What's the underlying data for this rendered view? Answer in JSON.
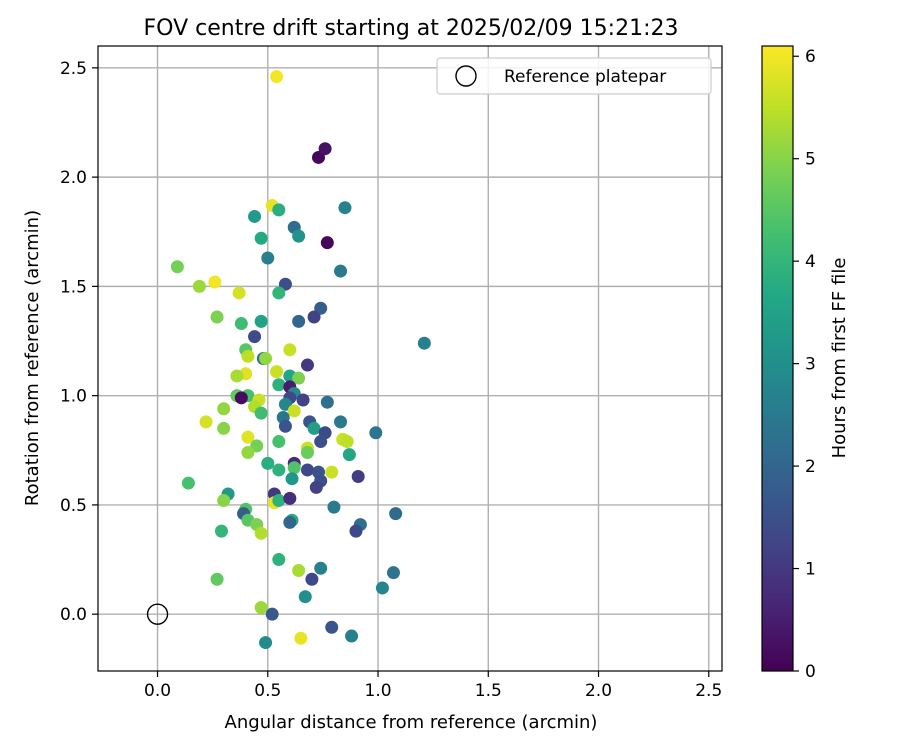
{
  "chart_data": {
    "type": "scatter",
    "title": "FOV centre drift starting at 2025/02/09 15:21:23",
    "xlabel": "Angular distance from reference (arcmin)",
    "ylabel": "Rotation from reference (arcmin)",
    "xlim": [
      -0.27,
      2.56
    ],
    "ylim": [
      -0.26,
      2.6
    ],
    "xticks": [
      "0.0",
      "0.5",
      "1.0",
      "1.5",
      "2.0",
      "2.5"
    ],
    "yticks": [
      "0.0",
      "0.5",
      "1.0",
      "1.5",
      "2.0",
      "2.5"
    ],
    "grid": true,
    "legend": {
      "position": "top-right",
      "label": "Reference platepar"
    },
    "colorbar": {
      "label": "Hours from first FF file",
      "range": [
        0,
        6.1
      ],
      "ticks": [
        "0",
        "1",
        "2",
        "3",
        "4",
        "5",
        "6"
      ],
      "colormap": "viridis"
    },
    "reference_point": {
      "x": 0.0,
      "y": 0.0
    },
    "points": [
      {
        "x": 0.54,
        "y": 2.46,
        "h": 6.0
      },
      {
        "x": 0.73,
        "y": 2.09,
        "h": 0.1
      },
      {
        "x": 0.76,
        "y": 2.13,
        "h": 0.3
      },
      {
        "x": 0.52,
        "y": 1.87,
        "h": 5.9
      },
      {
        "x": 0.55,
        "y": 1.85,
        "h": 3.8
      },
      {
        "x": 0.44,
        "y": 1.82,
        "h": 3.3
      },
      {
        "x": 0.85,
        "y": 1.86,
        "h": 2.7
      },
      {
        "x": 0.62,
        "y": 1.77,
        "h": 2.2
      },
      {
        "x": 0.64,
        "y": 1.73,
        "h": 3.1
      },
      {
        "x": 0.47,
        "y": 1.72,
        "h": 3.7
      },
      {
        "x": 0.77,
        "y": 1.7,
        "h": 0.1
      },
      {
        "x": 0.5,
        "y": 1.63,
        "h": 2.6
      },
      {
        "x": 0.09,
        "y": 1.59,
        "h": 4.8
      },
      {
        "x": 0.83,
        "y": 1.57,
        "h": 2.5
      },
      {
        "x": 0.26,
        "y": 1.52,
        "h": 6.0
      },
      {
        "x": 0.19,
        "y": 1.5,
        "h": 5.2
      },
      {
        "x": 0.58,
        "y": 1.51,
        "h": 1.5
      },
      {
        "x": 0.55,
        "y": 1.47,
        "h": 4.0
      },
      {
        "x": 0.37,
        "y": 1.47,
        "h": 5.7
      },
      {
        "x": 0.74,
        "y": 1.4,
        "h": 1.8
      },
      {
        "x": 0.27,
        "y": 1.36,
        "h": 4.9
      },
      {
        "x": 0.71,
        "y": 1.36,
        "h": 1.2
      },
      {
        "x": 0.64,
        "y": 1.34,
        "h": 2.0
      },
      {
        "x": 0.47,
        "y": 1.34,
        "h": 3.5
      },
      {
        "x": 0.38,
        "y": 1.33,
        "h": 4.2
      },
      {
        "x": 0.44,
        "y": 1.27,
        "h": 1.4
      },
      {
        "x": 1.21,
        "y": 1.24,
        "h": 2.6
      },
      {
        "x": 0.4,
        "y": 1.21,
        "h": 4.5
      },
      {
        "x": 0.6,
        "y": 1.21,
        "h": 5.6
      },
      {
        "x": 0.41,
        "y": 1.18,
        "h": 5.5
      },
      {
        "x": 0.48,
        "y": 1.17,
        "h": 2.3
      },
      {
        "x": 0.49,
        "y": 1.17,
        "h": 5.1
      },
      {
        "x": 0.68,
        "y": 1.14,
        "h": 1.0
      },
      {
        "x": 0.54,
        "y": 1.11,
        "h": 5.6
      },
      {
        "x": 0.4,
        "y": 1.1,
        "h": 5.8
      },
      {
        "x": 0.36,
        "y": 1.09,
        "h": 5.3
      },
      {
        "x": 0.6,
        "y": 1.09,
        "h": 3.6
      },
      {
        "x": 0.64,
        "y": 1.08,
        "h": 4.9
      },
      {
        "x": 0.55,
        "y": 1.05,
        "h": 3.9
      },
      {
        "x": 0.6,
        "y": 1.04,
        "h": 0.5
      },
      {
        "x": 0.62,
        "y": 1.01,
        "h": 2.9
      },
      {
        "x": 0.36,
        "y": 1.0,
        "h": 4.6
      },
      {
        "x": 0.41,
        "y": 1.0,
        "h": 4.3
      },
      {
        "x": 0.38,
        "y": 0.99,
        "h": 0.2
      },
      {
        "x": 0.46,
        "y": 0.98,
        "h": 5.6
      },
      {
        "x": 0.6,
        "y": 0.99,
        "h": 1.3
      },
      {
        "x": 0.66,
        "y": 0.98,
        "h": 1.2
      },
      {
        "x": 0.44,
        "y": 0.95,
        "h": 5.4
      },
      {
        "x": 0.58,
        "y": 0.96,
        "h": 2.8
      },
      {
        "x": 0.77,
        "y": 0.97,
        "h": 2.2
      },
      {
        "x": 0.3,
        "y": 0.94,
        "h": 5.1
      },
      {
        "x": 0.62,
        "y": 0.93,
        "h": 5.6
      },
      {
        "x": 0.47,
        "y": 0.92,
        "h": 4.2
      },
      {
        "x": 0.57,
        "y": 0.9,
        "h": 2.4
      },
      {
        "x": 0.22,
        "y": 0.88,
        "h": 5.7
      },
      {
        "x": 0.69,
        "y": 0.88,
        "h": 1.6
      },
      {
        "x": 0.83,
        "y": 0.88,
        "h": 2.5
      },
      {
        "x": 0.58,
        "y": 0.86,
        "h": 1.6
      },
      {
        "x": 0.3,
        "y": 0.85,
        "h": 5.0
      },
      {
        "x": 0.71,
        "y": 0.85,
        "h": 3.4
      },
      {
        "x": 0.76,
        "y": 0.83,
        "h": 1.4
      },
      {
        "x": 0.99,
        "y": 0.83,
        "h": 2.4
      },
      {
        "x": 0.41,
        "y": 0.81,
        "h": 5.8
      },
      {
        "x": 0.84,
        "y": 0.8,
        "h": 5.6
      },
      {
        "x": 0.86,
        "y": 0.79,
        "h": 5.5
      },
      {
        "x": 0.55,
        "y": 0.79,
        "h": 4.3
      },
      {
        "x": 0.74,
        "y": 0.79,
        "h": 1.5
      },
      {
        "x": 0.45,
        "y": 0.77,
        "h": 4.8
      },
      {
        "x": 0.68,
        "y": 0.76,
        "h": 5.6
      },
      {
        "x": 0.41,
        "y": 0.74,
        "h": 5.1
      },
      {
        "x": 0.68,
        "y": 0.74,
        "h": 4.7
      },
      {
        "x": 0.87,
        "y": 0.73,
        "h": 3.6
      },
      {
        "x": 0.62,
        "y": 0.69,
        "h": 0.7
      },
      {
        "x": 0.5,
        "y": 0.69,
        "h": 3.8
      },
      {
        "x": 0.62,
        "y": 0.67,
        "h": 4.4
      },
      {
        "x": 0.55,
        "y": 0.66,
        "h": 3.9
      },
      {
        "x": 0.68,
        "y": 0.66,
        "h": 1.3
      },
      {
        "x": 0.73,
        "y": 0.65,
        "h": 1.6
      },
      {
        "x": 0.79,
        "y": 0.65,
        "h": 5.6
      },
      {
        "x": 0.91,
        "y": 0.63,
        "h": 1.1
      },
      {
        "x": 0.61,
        "y": 0.62,
        "h": 3.2
      },
      {
        "x": 0.74,
        "y": 0.61,
        "h": 1.5
      },
      {
        "x": 0.14,
        "y": 0.6,
        "h": 4.3
      },
      {
        "x": 0.72,
        "y": 0.58,
        "h": 1.2
      },
      {
        "x": 0.32,
        "y": 0.55,
        "h": 3.3
      },
      {
        "x": 0.53,
        "y": 0.55,
        "h": 1.0
      },
      {
        "x": 0.3,
        "y": 0.52,
        "h": 5.0
      },
      {
        "x": 0.53,
        "y": 0.51,
        "h": 5.9
      },
      {
        "x": 0.55,
        "y": 0.52,
        "h": 3.9
      },
      {
        "x": 0.6,
        "y": 0.53,
        "h": 0.8
      },
      {
        "x": 0.8,
        "y": 0.49,
        "h": 2.5
      },
      {
        "x": 0.4,
        "y": 0.48,
        "h": 4.4
      },
      {
        "x": 0.39,
        "y": 0.46,
        "h": 1.8
      },
      {
        "x": 1.08,
        "y": 0.46,
        "h": 2.1
      },
      {
        "x": 0.41,
        "y": 0.43,
        "h": 4.5
      },
      {
        "x": 0.61,
        "y": 0.43,
        "h": 3.8
      },
      {
        "x": 0.6,
        "y": 0.42,
        "h": 2.0
      },
      {
        "x": 0.45,
        "y": 0.41,
        "h": 4.9
      },
      {
        "x": 0.92,
        "y": 0.41,
        "h": 2.2
      },
      {
        "x": 0.9,
        "y": 0.38,
        "h": 1.3
      },
      {
        "x": 0.29,
        "y": 0.38,
        "h": 4.0
      },
      {
        "x": 0.47,
        "y": 0.37,
        "h": 5.4
      },
      {
        "x": 0.55,
        "y": 0.25,
        "h": 3.9
      },
      {
        "x": 0.74,
        "y": 0.21,
        "h": 2.6
      },
      {
        "x": 0.64,
        "y": 0.2,
        "h": 5.3
      },
      {
        "x": 1.07,
        "y": 0.19,
        "h": 2.3
      },
      {
        "x": 0.27,
        "y": 0.16,
        "h": 4.6
      },
      {
        "x": 0.7,
        "y": 0.16,
        "h": 1.3
      },
      {
        "x": 1.02,
        "y": 0.12,
        "h": 2.8
      },
      {
        "x": 0.67,
        "y": 0.08,
        "h": 3.0
      },
      {
        "x": 0.47,
        "y": 0.03,
        "h": 5.2
      },
      {
        "x": 0.52,
        "y": 0.0,
        "h": 1.7
      },
      {
        "x": 0.79,
        "y": -0.06,
        "h": 1.6
      },
      {
        "x": 0.88,
        "y": -0.1,
        "h": 2.6
      },
      {
        "x": 0.65,
        "y": -0.11,
        "h": 5.9
      },
      {
        "x": 0.49,
        "y": -0.13,
        "h": 2.9
      }
    ]
  }
}
